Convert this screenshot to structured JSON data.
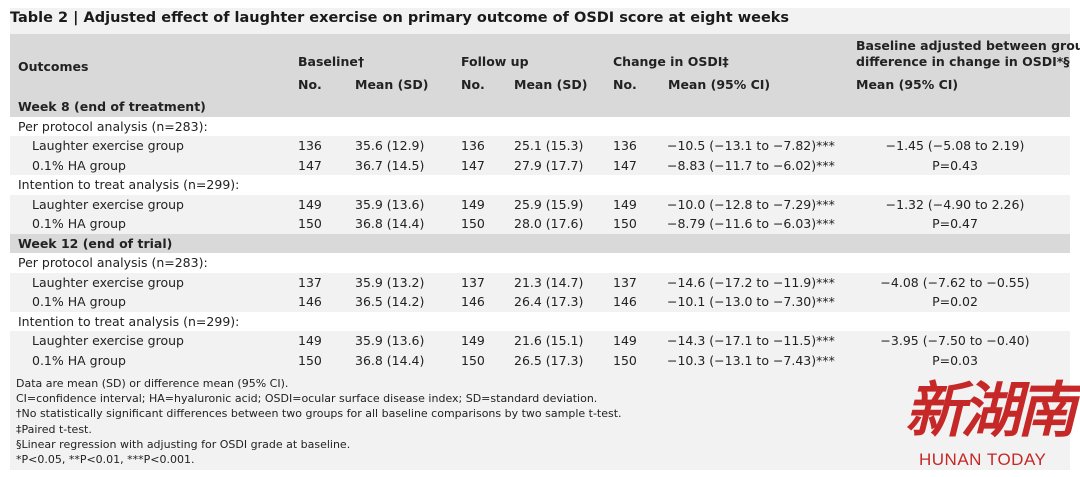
{
  "title": "Table 2 | Adjusted effect of laughter exercise on primary outcome of OSDI score at eight weeks",
  "header": {
    "outcomes": "Outcomes",
    "baseline": "Baseline†",
    "follow_up": "Follow up",
    "change": "Change in OSDI‡",
    "adjusted_line1": "Baseline adjusted between group",
    "adjusted_line2": "difference in change in OSDI*§",
    "no1": "No.",
    "mean_sd1": "Mean (SD)",
    "no2": "No.",
    "mean_sd2": "Mean (SD)",
    "no3": "No.",
    "mean_ci": "Mean (95% CI)",
    "mean_ci_adj": "Mean (95% CI)"
  },
  "rows": [
    {
      "type": "section",
      "label": "Week 8 (end of treatment)"
    },
    {
      "type": "sub",
      "label": "Per protocol analysis (n=283):"
    },
    {
      "type": "data",
      "label": "Laughter exercise group",
      "b_no": "136",
      "b_mean": "35.6 (12.9)",
      "f_no": "136",
      "f_mean": "25.1 (15.3)",
      "c_no": "136",
      "c_mean": "−10.5 (−13.1 to −7.82)***",
      "adj": "−1.45 (−5.08 to 2.19)"
    },
    {
      "type": "data",
      "label": "0.1% HA group",
      "b_no": "147",
      "b_mean": "36.7 (14.5)",
      "f_no": "147",
      "f_mean": "27.9 (17.7)",
      "c_no": "147",
      "c_mean": "−8.83 (−11.7 to −6.02)***",
      "adj": "P=0.43"
    },
    {
      "type": "sub",
      "label": "Intention to treat analysis (n=299):"
    },
    {
      "type": "data",
      "label": "Laughter exercise group",
      "b_no": "149",
      "b_mean": "35.9 (13.6)",
      "f_no": "149",
      "f_mean": "25.9 (15.9)",
      "c_no": "149",
      "c_mean": "−10.0 (−12.8 to −7.29)***",
      "adj": "−1.32 (−4.90 to 2.26)"
    },
    {
      "type": "data",
      "label": "0.1% HA group",
      "b_no": "150",
      "b_mean": "36.8 (14.4)",
      "f_no": "150",
      "f_mean": "28.0 (17.6)",
      "c_no": "150",
      "c_mean": "−8.79 (−11.6 to −6.03)***",
      "adj": "P=0.47"
    },
    {
      "type": "section",
      "label": "Week 12 (end of trial)"
    },
    {
      "type": "sub",
      "label": "Per protocol analysis (n=283):"
    },
    {
      "type": "data",
      "label": "Laughter exercise group",
      "b_no": "137",
      "b_mean": "35.9 (13.2)",
      "f_no": "137",
      "f_mean": "21.3 (14.7)",
      "c_no": "137",
      "c_mean": "−14.6 (−17.2 to −11.9)***",
      "adj": "−4.08 (−7.62 to −0.55)"
    },
    {
      "type": "data",
      "label": "0.1% HA group",
      "b_no": "146",
      "b_mean": "36.5 (14.2)",
      "f_no": "146",
      "f_mean": "26.4 (17.3)",
      "c_no": "146",
      "c_mean": "−10.1 (−13.0 to −7.30)***",
      "adj": "P=0.02"
    },
    {
      "type": "sub",
      "label": "Intention to treat analysis (n=299):"
    },
    {
      "type": "data",
      "label": "Laughter exercise group",
      "b_no": "149",
      "b_mean": "35.9 (13.6)",
      "f_no": "149",
      "f_mean": "21.6 (15.1)",
      "c_no": "149",
      "c_mean": "−14.3 (−17.1 to −11.5)***",
      "adj": "−3.95 (−7.50 to −0.40)"
    },
    {
      "type": "data",
      "label": "0.1% HA group",
      "b_no": "150",
      "b_mean": "36.8 (14.4)",
      "f_no": "150",
      "f_mean": "26.5 (17.3)",
      "c_no": "150",
      "c_mean": "−10.3 (−13.1 to −7.43)***",
      "adj": "P=0.03"
    }
  ],
  "notes": [
    "Data are mean (SD) or difference mean (95% CI).",
    "CI=confidence interval; HA=hyaluronic acid; OSDI=ocular surface disease index; SD=standard deviation.",
    "†No statistically significant differences between two groups for all baseline comparisons by two sample t-test.",
    "‡Paired t-test.",
    "§Linear regression with adjusting for OSDI grade at baseline.",
    "*P<0.05, **P<0.01, ***P<0.001."
  ],
  "logo": {
    "chinese": "新湖南",
    "english": "HUNAN TODAY"
  },
  "colors": {
    "header_bg": "#d9d9d9",
    "row_bg": "#f2f2f2",
    "logo_red": "#c62828"
  }
}
